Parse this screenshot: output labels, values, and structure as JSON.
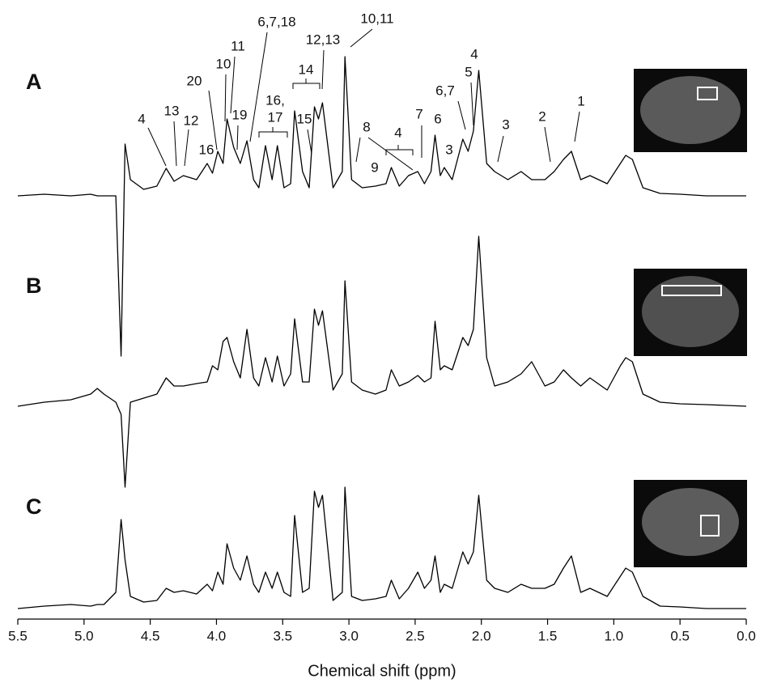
{
  "chart_data": {
    "type": "line",
    "x_label": "Chemical shift (ppm)",
    "xlim": [
      5.5,
      0
    ],
    "xticks": [
      5.5,
      {
        "value": 5,
        "label": "5.0"
      },
      4.5,
      {
        "value": 4,
        "label": "4.0"
      },
      3.5,
      {
        "value": 3,
        "label": "3.0"
      },
      2.5,
      {
        "value": 2,
        "label": "2.0"
      },
      1.5,
      {
        "value": 1,
        "label": "1.0"
      },
      0.5,
      {
        "value": 0,
        "label": "0.0"
      }
    ],
    "x": [
      5.5,
      5.3,
      5.1,
      4.95,
      4.9,
      4.85,
      4.76,
      4.72,
      4.69,
      4.65,
      4.55,
      4.45,
      4.38,
      4.32,
      4.25,
      4.15,
      4.07,
      4.03,
      3.99,
      3.95,
      3.92,
      3.87,
      3.82,
      3.77,
      3.72,
      3.68,
      3.63,
      3.58,
      3.54,
      3.49,
      3.44,
      3.41,
      3.35,
      3.3,
      3.26,
      3.23,
      3.2,
      3.12,
      3.05,
      3.03,
      2.98,
      2.9,
      2.8,
      2.72,
      2.68,
      2.62,
      2.55,
      2.48,
      2.43,
      2.38,
      2.35,
      2.31,
      2.28,
      2.22,
      2.14,
      2.1,
      2.06,
      2.02,
      1.96,
      1.9,
      1.8,
      1.7,
      1.62,
      1.52,
      1.45,
      1.38,
      1.32,
      1.25,
      1.18,
      1.05,
      0.95,
      0.91,
      0.86,
      0.78,
      0.65,
      0.5,
      0.3,
      0.0
    ],
    "series": [
      {
        "name": "A",
        "color": "#000000",
        "values": [
          0,
          2,
          0,
          2,
          0,
          0,
          0,
          -198,
          64,
          20,
          8,
          12,
          34,
          18,
          25,
          20,
          40,
          28,
          55,
          40,
          95,
          60,
          40,
          68,
          20,
          10,
          62,
          20,
          62,
          10,
          15,
          105,
          30,
          10,
          110,
          95,
          115,
          10,
          30,
          172,
          20,
          10,
          12,
          15,
          35,
          12,
          25,
          30,
          15,
          30,
          75,
          25,
          35,
          20,
          70,
          55,
          80,
          155,
          40,
          30,
          20,
          30,
          20,
          20,
          30,
          45,
          55,
          20,
          25,
          15,
          40,
          50,
          45,
          10,
          3,
          2,
          0,
          0
        ]
      },
      {
        "name": "B",
        "color": "#000000",
        "values": [
          0,
          5,
          8,
          15,
          22,
          15,
          5,
          -10,
          -100,
          5,
          10,
          15,
          35,
          25,
          25,
          28,
          30,
          50,
          45,
          80,
          85,
          55,
          35,
          95,
          35,
          25,
          60,
          30,
          62,
          25,
          40,
          108,
          30,
          30,
          120,
          100,
          118,
          20,
          40,
          155,
          30,
          20,
          15,
          20,
          45,
          25,
          30,
          38,
          30,
          35,
          105,
          45,
          50,
          45,
          85,
          75,
          95,
          210,
          60,
          25,
          30,
          40,
          55,
          25,
          30,
          45,
          35,
          25,
          35,
          20,
          50,
          60,
          55,
          15,
          5,
          3,
          2,
          0
        ]
      },
      {
        "name": "C",
        "color": "#000000",
        "values": [
          0,
          3,
          5,
          3,
          5,
          5,
          20,
          110,
          60,
          15,
          8,
          10,
          25,
          20,
          22,
          18,
          30,
          22,
          45,
          30,
          80,
          50,
          35,
          65,
          30,
          20,
          45,
          25,
          45,
          20,
          15,
          115,
          20,
          25,
          145,
          125,
          140,
          10,
          20,
          150,
          15,
          10,
          12,
          15,
          35,
          12,
          25,
          45,
          25,
          35,
          65,
          20,
          30,
          25,
          70,
          55,
          70,
          140,
          35,
          25,
          20,
          30,
          25,
          25,
          30,
          50,
          65,
          20,
          25,
          15,
          40,
          50,
          45,
          15,
          3,
          2,
          0,
          0
        ]
      }
    ],
    "annotations": [
      "4",
      "13",
      "12",
      "16",
      "20",
      "10",
      "11",
      "19",
      "6,7,18",
      "16,",
      "17",
      "14",
      "15",
      "12,13",
      "10,11",
      "8",
      "9",
      "4",
      "7",
      "6",
      "3",
      "6,7",
      "5",
      "4",
      "3",
      "2",
      "1"
    ]
  }
}
